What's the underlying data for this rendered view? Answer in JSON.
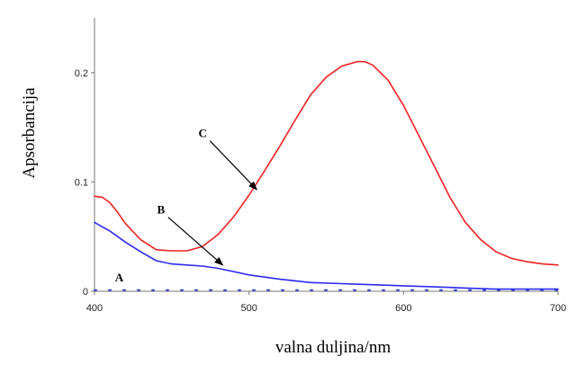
{
  "chart_data": {
    "type": "line",
    "title": "",
    "xlabel": "valna duljina/nm",
    "ylabel": "Apsorbancija",
    "xlim": [
      400,
      700
    ],
    "ylim": [
      0,
      0.25
    ],
    "x_ticks": [
      "400",
      "500",
      "600",
      "700"
    ],
    "y_ticks": [
      "0",
      "0.1",
      "0.2"
    ],
    "grid": false,
    "series": [
      {
        "name": "A",
        "color": "#3344cc",
        "x": [
          400,
          420,
          450,
          500,
          550,
          600,
          650,
          700
        ],
        "y": [
          0.001,
          0.001,
          0.001,
          0.001,
          0.001,
          0.001,
          0.001,
          0.001
        ]
      },
      {
        "name": "B",
        "color": "#2b2bef",
        "x": [
          400,
          410,
          420,
          430,
          440,
          450,
          460,
          470,
          480,
          490,
          500,
          520,
          540,
          560,
          580,
          600,
          620,
          640,
          660,
          680,
          700
        ],
        "y": [
          0.063,
          0.055,
          0.045,
          0.036,
          0.028,
          0.025,
          0.024,
          0.023,
          0.021,
          0.018,
          0.015,
          0.011,
          0.008,
          0.007,
          0.006,
          0.005,
          0.004,
          0.003,
          0.002,
          0.002,
          0.002
        ]
      },
      {
        "name": "C",
        "color": "#ee2222",
        "x": [
          400,
          405,
          410,
          415,
          420,
          430,
          440,
          450,
          460,
          470,
          480,
          490,
          500,
          510,
          520,
          530,
          540,
          550,
          560,
          570,
          575,
          580,
          590,
          600,
          610,
          620,
          630,
          640,
          650,
          660,
          670,
          680,
          690,
          700
        ],
        "y": [
          0.087,
          0.086,
          0.081,
          0.072,
          0.062,
          0.047,
          0.038,
          0.037,
          0.037,
          0.041,
          0.052,
          0.068,
          0.088,
          0.11,
          0.133,
          0.157,
          0.18,
          0.196,
          0.206,
          0.21,
          0.21,
          0.207,
          0.193,
          0.17,
          0.142,
          0.114,
          0.086,
          0.063,
          0.047,
          0.036,
          0.03,
          0.027,
          0.025,
          0.024
        ]
      }
    ],
    "annotations": [
      {
        "label": "C",
        "tip": [
          505,
          0.093
        ],
        "text_at": [
          470,
          0.141
        ]
      },
      {
        "label": "B",
        "tip": [
          483,
          0.024
        ],
        "text_at": [
          443,
          0.071
        ]
      },
      {
        "label": "A",
        "tip": null,
        "text_at": [
          416,
          0.009
        ]
      }
    ]
  }
}
